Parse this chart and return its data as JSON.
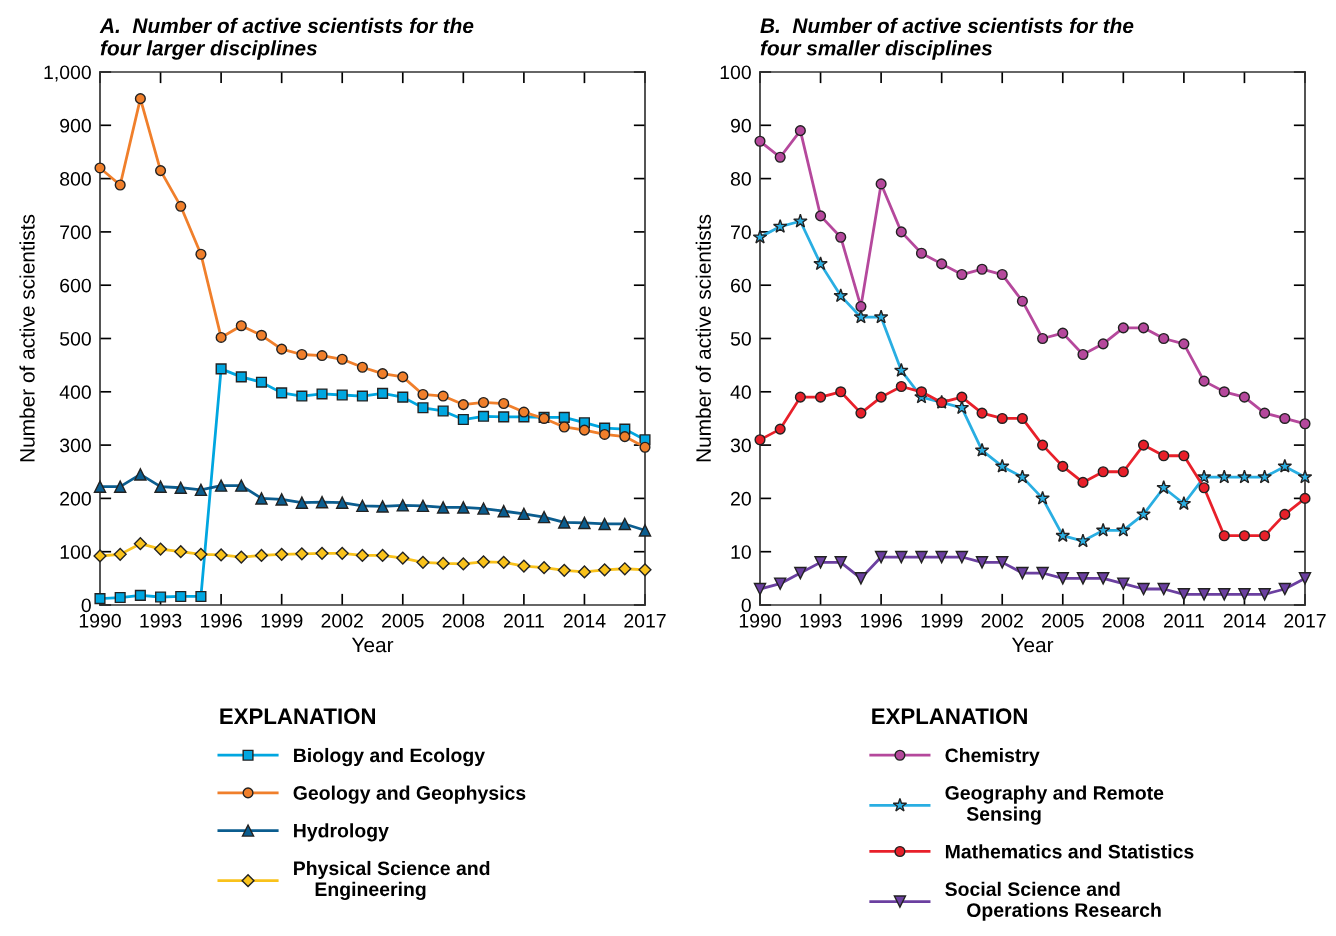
{
  "chart_data": [
    {
      "type": "line",
      "title": "A.  Number of active scientists for the\nfour larger disciplines",
      "xlabel": "Year",
      "ylabel": "Number of active scientists",
      "legend_title": "EXPLANATION",
      "legend": "bottom",
      "x": [
        1990,
        1991,
        1992,
        1993,
        1994,
        1995,
        1996,
        1997,
        1998,
        1999,
        2000,
        2001,
        2002,
        2003,
        2004,
        2005,
        2006,
        2007,
        2008,
        2009,
        2010,
        2011,
        2012,
        2013,
        2014,
        2015,
        2016,
        2017
      ],
      "xlim": [
        1990,
        2017
      ],
      "xticks": [
        1990,
        1993,
        1996,
        1999,
        2002,
        2005,
        2008,
        2011,
        2014,
        2017
      ],
      "ylim": [
        0,
        1000
      ],
      "yticks": [
        0,
        100,
        200,
        300,
        400,
        500,
        600,
        700,
        800,
        900,
        {
          "value": 1000,
          "label": "1,000"
        }
      ],
      "grid": false,
      "series": [
        {
          "name": "Biology and Ecology",
          "color": "#00a6e0",
          "marker": "square",
          "values": [
            12,
            14,
            18,
            15,
            16,
            16,
            443,
            428,
            418,
            398,
            392,
            396,
            394,
            392,
            397,
            390,
            370,
            364,
            348,
            354,
            353,
            353,
            352,
            352,
            342,
            332,
            330,
            310
          ]
        },
        {
          "name": "Geology and Geophysics",
          "color": "#f07f2b",
          "marker": "circle",
          "values": [
            820,
            788,
            950,
            815,
            748,
            658,
            502,
            524,
            506,
            480,
            470,
            468,
            461,
            446,
            434,
            428,
            395,
            392,
            376,
            380,
            378,
            362,
            350,
            334,
            328,
            320,
            316,
            296
          ]
        },
        {
          "name": "Hydrology",
          "color": "#0b5d8f",
          "marker": "triangle",
          "values": [
            222,
            222,
            245,
            222,
            220,
            216,
            224,
            224,
            200,
            198,
            192,
            193,
            192,
            186,
            185,
            187,
            186,
            183,
            183,
            181,
            176,
            171,
            165,
            155,
            154,
            152,
            152,
            140
          ]
        },
        {
          "name": "Physical Science and\nEngineering",
          "color": "#f9c21b",
          "marker": "diamond",
          "values": [
            92,
            95,
            115,
            105,
            100,
            95,
            94,
            90,
            93,
            95,
            96,
            97,
            97,
            93,
            93,
            88,
            80,
            78,
            77,
            81,
            80,
            73,
            70,
            65,
            62,
            66,
            68,
            66
          ]
        }
      ]
    },
    {
      "type": "line",
      "title": "B.  Number of active scientists for the\nfour smaller disciplines",
      "xlabel": "Year",
      "ylabel": "Number of active scientists",
      "legend_title": "EXPLANATION",
      "legend": "bottom",
      "x": [
        1990,
        1991,
        1992,
        1993,
        1994,
        1995,
        1996,
        1997,
        1998,
        1999,
        2000,
        2001,
        2002,
        2003,
        2004,
        2005,
        2006,
        2007,
        2008,
        2009,
        2010,
        2011,
        2012,
        2013,
        2014,
        2015,
        2016,
        2017
      ],
      "xlim": [
        1990,
        2017
      ],
      "xticks": [
        1990,
        1993,
        1996,
        1999,
        2002,
        2005,
        2008,
        2011,
        2014,
        2017
      ],
      "ylim": [
        0,
        100
      ],
      "yticks": [
        0,
        10,
        20,
        30,
        40,
        50,
        60,
        70,
        80,
        90,
        100
      ],
      "grid": false,
      "series": [
        {
          "name": "Chemistry",
          "color": "#b5489c",
          "marker": "circle",
          "values": [
            87,
            84,
            89,
            73,
            69,
            56,
            79,
            70,
            66,
            64,
            62,
            63,
            62,
            57,
            50,
            51,
            47,
            49,
            52,
            52,
            50,
            49,
            42,
            40,
            39,
            36,
            35,
            34
          ]
        },
        {
          "name": "Geography and Remote\nSensing",
          "color": "#29aee2",
          "marker": "star",
          "values": [
            69,
            71,
            72,
            64,
            58,
            54,
            54,
            44,
            39,
            38,
            37,
            29,
            26,
            24,
            20,
            13,
            12,
            14,
            14,
            17,
            22,
            19,
            24,
            24,
            24,
            24,
            26,
            24
          ]
        },
        {
          "name": "Mathematics and Statistics",
          "color": "#e8202a",
          "marker": "circle",
          "values": [
            31,
            33,
            39,
            39,
            40,
            36,
            39,
            41,
            40,
            38,
            39,
            36,
            35,
            35,
            30,
            26,
            23,
            25,
            25,
            30,
            28,
            28,
            22,
            13,
            13,
            13,
            17,
            20
          ]
        },
        {
          "name": "Social Science and\nOperations Research",
          "color": "#6b3fa0",
          "marker": "triangle_down",
          "values": [
            3,
            4,
            6,
            8,
            8,
            5,
            9,
            9,
            9,
            9,
            9,
            8,
            8,
            6,
            6,
            5,
            5,
            5,
            4,
            3,
            3,
            2,
            2,
            2,
            2,
            2,
            3,
            5
          ]
        }
      ]
    }
  ]
}
